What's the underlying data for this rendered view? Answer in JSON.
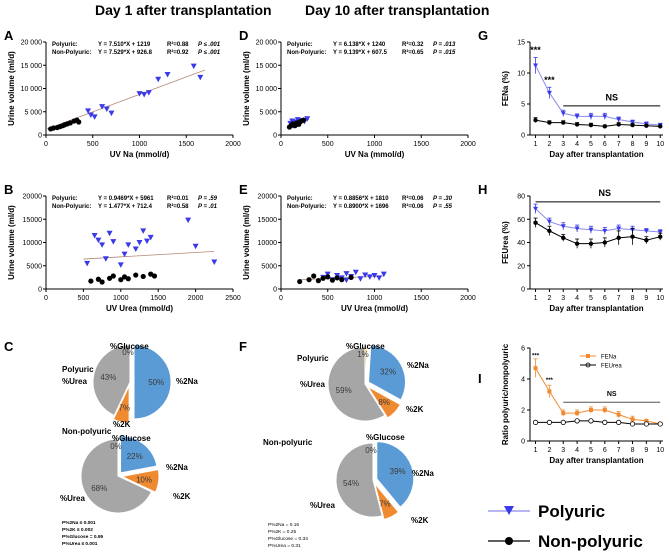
{
  "headers": {
    "day1": "Day 1 after transplantation",
    "day10": "Day 10 after transplantation"
  },
  "colors": {
    "poly": "#3a3ae8",
    "nonpoly": "#000000",
    "orange": "#f08a30",
    "blue": "#5b9bd5",
    "gray": "#a6a6a6",
    "yellow": "#f2c94c"
  },
  "scatter": [
    {
      "id": "A",
      "letter": "A",
      "xlabel": "UV Na (mmol/d)",
      "ylabel": "Urine volume (ml/d)",
      "xlim": [
        0,
        2000
      ],
      "ylim": [
        0,
        20000
      ],
      "xticks": [
        "0",
        "500",
        "1000",
        "1500",
        "2000"
      ],
      "yticks": [
        "0",
        "5 000",
        "10 000",
        "15 000",
        "20 000"
      ],
      "eq_poly_label": "Polyuric:",
      "eq_poly": "Y = 7.510*X + 1219",
      "r2_poly": "R²=0.88",
      "p_poly": "P ≤ .001",
      "eq_non_label": "Non-Polyuric:",
      "eq_non": "Y = 7.529*X + 926.8",
      "r2_non": "R²=0.92",
      "p_non": "P ≤ .001",
      "trend": [
        [
          0,
          1219
        ],
        [
          1700,
          13986
        ]
      ],
      "poly": [
        [
          450,
          5200
        ],
        [
          480,
          4300
        ],
        [
          520,
          3900
        ],
        [
          600,
          6100
        ],
        [
          650,
          5600
        ],
        [
          700,
          4700
        ],
        [
          1000,
          8900
        ],
        [
          1050,
          8700
        ],
        [
          1100,
          9100
        ],
        [
          1200,
          12000
        ],
        [
          1300,
          13000
        ],
        [
          1580,
          14800
        ],
        [
          1650,
          12400
        ]
      ],
      "non": [
        [
          50,
          1300
        ],
        [
          80,
          1500
        ],
        [
          120,
          1600
        ],
        [
          150,
          1800
        ],
        [
          180,
          2000
        ],
        [
          200,
          2200
        ],
        [
          230,
          2400
        ],
        [
          260,
          2600
        ],
        [
          300,
          3000
        ],
        [
          330,
          3200
        ],
        [
          350,
          2800
        ]
      ]
    },
    {
      "id": "B",
      "letter": "B",
      "xlabel": "UV Urea (mmol/d)",
      "ylabel": "Urine volume (ml/d)",
      "xlim": [
        0,
        2500
      ],
      "ylim": [
        0,
        20000
      ],
      "xticks": [
        "0",
        "500",
        "1000",
        "1500",
        "2000",
        "2500"
      ],
      "yticks": [
        "0",
        "5000",
        "10000",
        "15000",
        "20000"
      ],
      "eq_poly_label": "Polyuric:",
      "eq_poly": "Y = 0.9469*X + 5961",
      "r2_poly": "R²=0.01",
      "p_poly": "P = .59",
      "eq_non_label": "Non-Polyuric:",
      "eq_non": "Y = 1.477*X + 712.4",
      "r2_non": "R²=0.58",
      "p_non": "P = .01",
      "trend": [
        [
          500,
          6434
        ],
        [
          2250,
          8091
        ]
      ],
      "poly": [
        [
          550,
          5500
        ],
        [
          650,
          11500
        ],
        [
          700,
          10500
        ],
        [
          750,
          9500
        ],
        [
          800,
          6500
        ],
        [
          850,
          12000
        ],
        [
          900,
          10200
        ],
        [
          1000,
          5200
        ],
        [
          1050,
          7500
        ],
        [
          1100,
          9500
        ],
        [
          1200,
          8600
        ],
        [
          1250,
          10000
        ],
        [
          1300,
          12500
        ],
        [
          1350,
          10300
        ],
        [
          1400,
          11100
        ],
        [
          1900,
          14800
        ],
        [
          2000,
          9200
        ],
        [
          2250,
          5800
        ]
      ],
      "non": [
        [
          600,
          1700
        ],
        [
          700,
          2100
        ],
        [
          750,
          1500
        ],
        [
          850,
          2300
        ],
        [
          900,
          2800
        ],
        [
          1000,
          2000
        ],
        [
          1050,
          2600
        ],
        [
          1100,
          2200
        ],
        [
          1200,
          3000
        ],
        [
          1300,
          2700
        ],
        [
          1400,
          3200
        ],
        [
          1450,
          2800
        ]
      ]
    },
    {
      "id": "D",
      "letter": "D",
      "xlabel": "UV Na (mmol/d)",
      "ylabel": "Urine volume (ml/d)",
      "xlim": [
        0,
        2000
      ],
      "ylim": [
        0,
        20000
      ],
      "xticks": [
        "0",
        "500",
        "1000",
        "1500",
        "2000"
      ],
      "yticks": [
        "0",
        "5 000",
        "10 000",
        "15 000",
        "20 000"
      ],
      "eq_poly_label": "Polyuric:",
      "eq_poly": "Y = 6.138*X + 1240",
      "r2_poly": "R²=0.32",
      "p_poly": "P = .013",
      "eq_non_label": "Non-Polyuric:",
      "eq_non": "Y = 9.139*X + 607.5",
      "r2_non": "R²=0.65",
      "p_non": "P = .015",
      "trend": [
        [
          90,
          1800
        ],
        [
          300,
          3400
        ]
      ],
      "poly": [
        [
          100,
          2500
        ],
        [
          120,
          3000
        ],
        [
          140,
          2200
        ],
        [
          160,
          2800
        ],
        [
          180,
          3300
        ],
        [
          200,
          2600
        ],
        [
          220,
          3100
        ],
        [
          250,
          2900
        ],
        [
          280,
          3500
        ],
        [
          130,
          2000
        ]
      ],
      "non": [
        [
          90,
          1700
        ],
        [
          110,
          2100
        ],
        [
          130,
          2400
        ],
        [
          150,
          2000
        ],
        [
          170,
          2600
        ],
        [
          190,
          2300
        ],
        [
          210,
          2900
        ],
        [
          240,
          3200
        ]
      ]
    },
    {
      "id": "E",
      "letter": "E",
      "xlabel": "UV Urea (mmol/d)",
      "ylabel": "Urine volume (ml/d)",
      "xlim": [
        0,
        2000
      ],
      "ylim": [
        0,
        20000
      ],
      "xticks": [
        "0",
        "500",
        "1000",
        "1500",
        "2000"
      ],
      "yticks": [
        "0",
        "5000",
        "10000",
        "15000",
        "20000"
      ],
      "eq_poly_label": "Polyuric:",
      "eq_poly": "Y = 0.8856*X + 1810",
      "r2_poly": "R²=0.06",
      "p_poly": "P = .30",
      "eq_non_label": "Non-Polyuric:",
      "eq_non": "Y = 0.8900*X + 1696",
      "r2_non": "R²=0.06",
      "p_non": "P = .55",
      "trend": [
        [
          200,
          1990
        ],
        [
          1100,
          2790
        ]
      ],
      "poly": [
        [
          450,
          2500
        ],
        [
          500,
          3200
        ],
        [
          550,
          2000
        ],
        [
          600,
          2900
        ],
        [
          650,
          2400
        ],
        [
          700,
          3300
        ],
        [
          750,
          2700
        ],
        [
          800,
          3600
        ],
        [
          850,
          2200
        ],
        [
          900,
          3000
        ],
        [
          950,
          2600
        ],
        [
          1000,
          2900
        ],
        [
          1050,
          2400
        ],
        [
          1100,
          3200
        ],
        [
          700,
          1900
        ]
      ],
      "non": [
        [
          200,
          1600
        ],
        [
          300,
          2000
        ],
        [
          350,
          2800
        ],
        [
          400,
          1800
        ],
        [
          450,
          2300
        ],
        [
          500,
          2600
        ],
        [
          550,
          1900
        ],
        [
          600,
          2400
        ],
        [
          650,
          2000
        ],
        [
          750,
          2500
        ]
      ]
    }
  ],
  "pies": [
    {
      "id": "C1",
      "letter": "C",
      "title": "Polyuric",
      "slices": [
        {
          "label": "%2Na",
          "pct": "50%",
          "value": 50,
          "color": "blue",
          "explode": true
        },
        {
          "label": "%2K",
          "pct": "7%",
          "value": 7,
          "color": "orange",
          "explode": true
        },
        {
          "label": "%Urea",
          "pct": "43%",
          "value": 43,
          "color": "gray",
          "explode": false
        },
        {
          "label": "%Glucose",
          "pct": "0%",
          "value": 0,
          "color": "yellow",
          "explode": false
        }
      ]
    },
    {
      "id": "C2",
      "letter": "",
      "title": "Non-polyuric",
      "slices": [
        {
          "label": "%2Na",
          "pct": "22%",
          "value": 22,
          "color": "blue",
          "explode": true
        },
        {
          "label": "%2K",
          "pct": "10%",
          "value": 10,
          "color": "orange",
          "explode": true
        },
        {
          "label": "%Urea",
          "pct": "68%",
          "value": 68,
          "color": "gray",
          "explode": false
        },
        {
          "label": "%Glucose",
          "pct": "0%",
          "value": 0,
          "color": "yellow",
          "explode": false
        }
      ],
      "stats": [
        "P%2Na ≤ 0.001",
        "P%2K ≤ 0.002",
        "P%Glucose = 0.95",
        "P%Urea ≤ 0.001"
      ]
    },
    {
      "id": "F1",
      "letter": "F",
      "title": "Polyuric",
      "slices": [
        {
          "label": "%2Na",
          "pct": "32%",
          "value": 32,
          "color": "blue",
          "explode": true
        },
        {
          "label": "%2K",
          "pct": "8%",
          "value": 8,
          "color": "orange",
          "explode": true
        },
        {
          "label": "%Urea",
          "pct": "59%",
          "value": 59,
          "color": "gray",
          "explode": false
        },
        {
          "label": "%Glucose",
          "pct": "1%",
          "value": 1,
          "color": "yellow",
          "explode": false
        }
      ]
    },
    {
      "id": "F2",
      "letter": "",
      "title": "Non-polyuric",
      "slices": [
        {
          "label": "%2Na",
          "pct": "39%",
          "value": 39,
          "color": "blue",
          "explode": true
        },
        {
          "label": "%2K",
          "pct": "7%",
          "value": 7,
          "color": "orange",
          "explode": true
        },
        {
          "label": "%Urea",
          "pct": "54%",
          "value": 54,
          "color": "gray",
          "explode": false
        },
        {
          "label": "%Glucose",
          "pct": "0%",
          "value": 0,
          "color": "yellow",
          "explode": false
        }
      ],
      "stats": [
        "P%2Na = 0.16",
        "P%2K = 0.25",
        "P%Glucose = 0.34",
        "P%Urea = 0.31"
      ]
    }
  ],
  "chart_data": [
    {
      "type": "line",
      "panel": "G",
      "title": "",
      "xlabel": "Day after transplantation",
      "ylabel": "FENa (%)",
      "x": [
        1,
        2,
        3,
        4,
        5,
        6,
        7,
        8,
        9,
        10
      ],
      "ylim": [
        0,
        15
      ],
      "yticks": [
        "0",
        "5",
        "10",
        "15"
      ],
      "series": [
        {
          "name": "Polyuric",
          "values": [
            11.2,
            6.8,
            3.5,
            3.0,
            3.0,
            3.0,
            2.5,
            2.1,
            1.8,
            1.6
          ],
          "err": [
            1.3,
            0.9,
            0.5,
            0.4,
            0.5,
            0.5,
            0.4,
            0.3,
            0.3,
            0.3
          ]
        },
        {
          "name": "Non-polyuric",
          "values": [
            2.4,
            2.0,
            2.0,
            1.7,
            1.6,
            1.4,
            1.7,
            1.6,
            1.5,
            1.4
          ],
          "err": [
            0.4,
            0.3,
            0.3,
            0.3,
            0.3,
            0.2,
            0.3,
            0.3,
            0.2,
            0.2
          ]
        }
      ],
      "annotations": [
        {
          "text": "***",
          "x": 1,
          "y": 13.2
        },
        {
          "text": "***",
          "x": 2,
          "y": 8.4
        },
        {
          "text": "NS",
          "x": 6.5,
          "y": 5.6
        }
      ],
      "ns_bar": {
        "x0": 3,
        "x1": 10,
        "y": 4.7
      }
    },
    {
      "type": "line",
      "panel": "H",
      "title": "",
      "xlabel": "Day after transplantation",
      "ylabel": "FEUrea (%)",
      "x": [
        1,
        2,
        3,
        4,
        5,
        6,
        7,
        8,
        9,
        10
      ],
      "ylim": [
        0,
        80
      ],
      "yticks": [
        "0",
        "20",
        "40",
        "60",
        "80"
      ],
      "series": [
        {
          "name": "Polyuric",
          "values": [
            69,
            58,
            54,
            52,
            51,
            50,
            52,
            51,
            50,
            49
          ],
          "err": [
            4,
            3,
            3,
            3,
            3,
            3,
            3,
            3,
            2,
            2
          ]
        },
        {
          "name": "Non-polyuric",
          "values": [
            57,
            50,
            44,
            39,
            39,
            40,
            44,
            45,
            42,
            45
          ],
          "err": [
            4,
            4,
            3,
            4,
            4,
            4,
            6,
            7,
            3,
            3
          ]
        }
      ],
      "annotations": [
        {
          "text": "NS",
          "x": 6,
          "y": 80
        }
      ],
      "ns_bar": {
        "x0": 1,
        "x1": 10,
        "y": 75
      }
    },
    {
      "type": "line",
      "panel": "I",
      "title": "",
      "xlabel": "Day after transplantation",
      "ylabel": "Ratio polyuric/nonpolyuric",
      "x": [
        1,
        2,
        3,
        4,
        5,
        6,
        7,
        8,
        9,
        10
      ],
      "ylim": [
        0,
        6
      ],
      "yticks": [
        "0",
        "2",
        "4",
        "6"
      ],
      "series": [
        {
          "name": "FENa",
          "values": [
            4.7,
            3.2,
            1.8,
            1.8,
            2.0,
            2.0,
            1.7,
            1.4,
            1.3,
            1.1
          ],
          "err": [
            0.6,
            0.4,
            0.2,
            0.2,
            0.2,
            0.2,
            0.2,
            0.2,
            0.1,
            0.1
          ]
        },
        {
          "name": "FEUrea",
          "values": [
            1.2,
            1.2,
            1.2,
            1.3,
            1.3,
            1.2,
            1.2,
            1.1,
            1.1,
            1.1
          ],
          "err": [
            0,
            0,
            0,
            0,
            0,
            0,
            0,
            0,
            0,
            0
          ]
        }
      ],
      "annotations": [
        {
          "text": "***",
          "x": 1,
          "y": 5.4
        },
        {
          "text": "***",
          "x": 2,
          "y": 3.8
        },
        {
          "text": "NS",
          "x": 6.5,
          "y": 2.9
        }
      ],
      "ns_bar": {
        "x0": 3,
        "x1": 10,
        "y": 2.5
      }
    }
  ],
  "legend": {
    "poly": "Polyuric",
    "non": "Non-polyuric"
  }
}
